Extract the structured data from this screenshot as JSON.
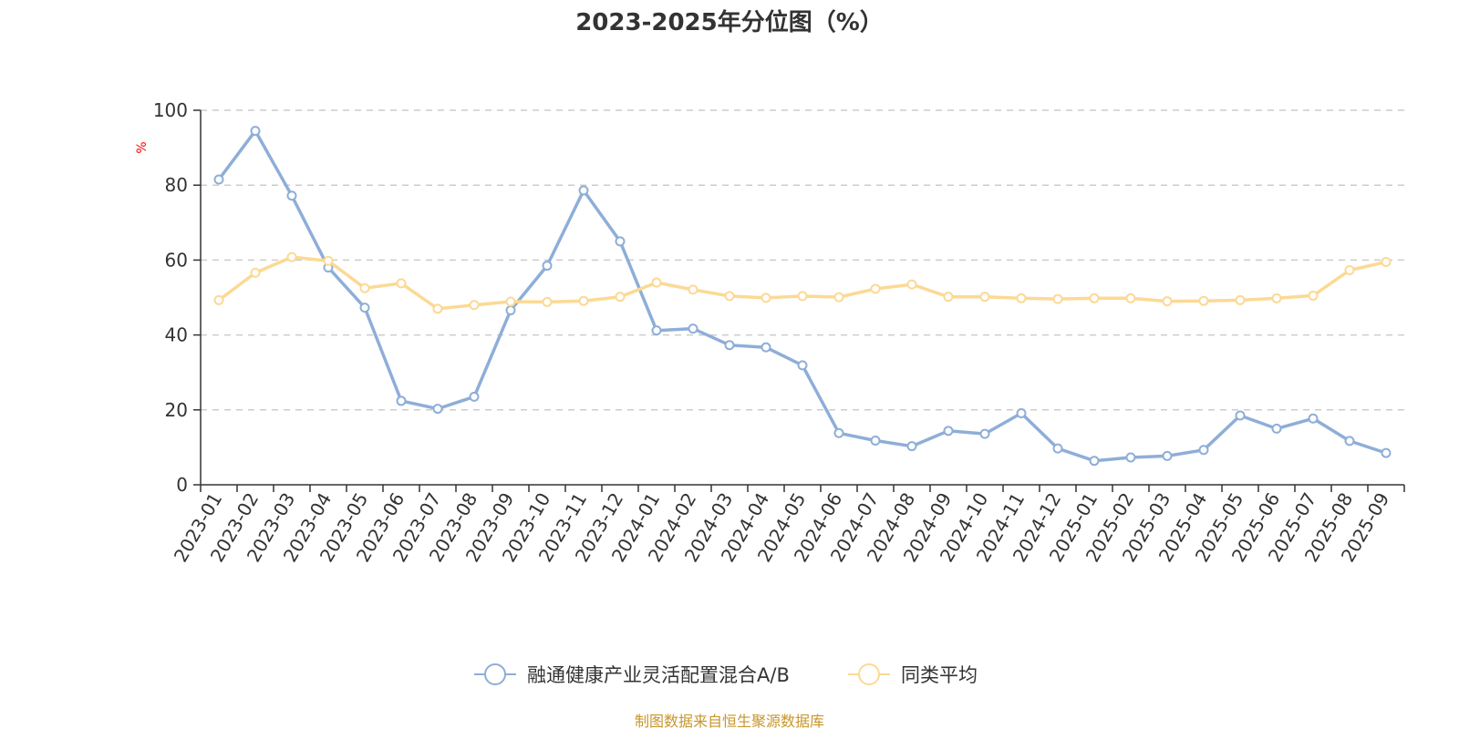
{
  "chart_data": {
    "type": "line",
    "title": "2023-2025年分位图（%）",
    "ylabel": "%",
    "xlabel": "",
    "ylim": [
      0,
      100
    ],
    "yticks": [
      0,
      20,
      40,
      60,
      80,
      100
    ],
    "grid": true,
    "legend_position": "bottom-center",
    "categories": [
      "2023-01",
      "2023-02",
      "2023-03",
      "2023-04",
      "2023-05",
      "2023-06",
      "2023-07",
      "2023-08",
      "2023-09",
      "2023-10",
      "2023-11",
      "2023-12",
      "2024-01",
      "2024-02",
      "2024-03",
      "2024-04",
      "2024-05",
      "2024-06",
      "2024-07",
      "2024-08",
      "2024-09",
      "2024-10",
      "2024-11",
      "2024-12",
      "2025-01",
      "2025-02",
      "2025-03",
      "2025-04",
      "2025-05",
      "2025-06",
      "2025-07",
      "2025-08",
      "2025-09"
    ],
    "series": [
      {
        "name": "融通健康产业灵活配置混合A/B",
        "color": "#8eaed8",
        "values": [
          81.5,
          94.5,
          77.2,
          58,
          47.3,
          22.4,
          20.3,
          23.5,
          46.6,
          58.5,
          78.6,
          65,
          41.2,
          41.7,
          37.3,
          36.7,
          31.9,
          13.8,
          11.8,
          10.3,
          14.4,
          13.6,
          19.1,
          9.7,
          6.4,
          7.3,
          7.7,
          9.3,
          18.5,
          15,
          17.7,
          11.7,
          8.5
        ]
      },
      {
        "name": "同类平均",
        "color": "#fcd994",
        "values": [
          49.3,
          56.6,
          60.8,
          59.8,
          52.5,
          53.8,
          47,
          48,
          48.9,
          48.8,
          49.1,
          50.2,
          54,
          52.1,
          50.4,
          49.9,
          50.4,
          50.1,
          52.3,
          53.5,
          50.2,
          50.2,
          49.8,
          49.6,
          49.8,
          49.8,
          49,
          49.1,
          49.3,
          49.8,
          50.5,
          57.3,
          59.5
        ]
      }
    ]
  },
  "source": "制图数据来自恒生聚源数据库"
}
